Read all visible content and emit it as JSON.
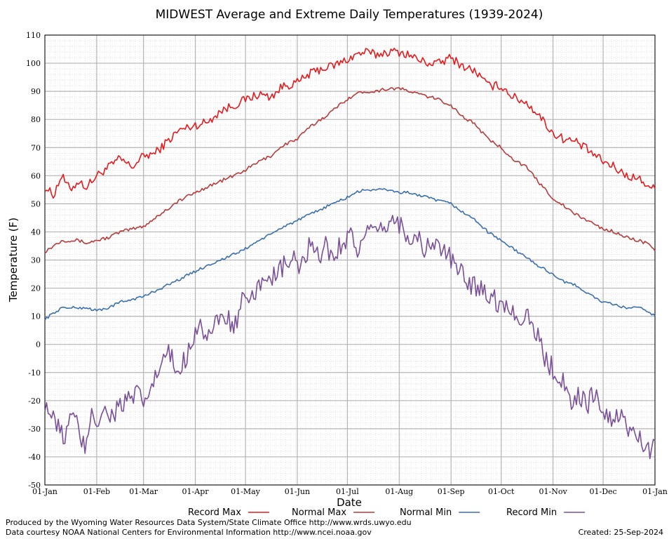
{
  "chart_data": {
    "type": "line",
    "title": "MIDWEST Average and Extreme Daily Temperatures (1939-2024)",
    "xlabel": "Date",
    "ylabel": "Temperature (F)",
    "ylim": [
      -50,
      110
    ],
    "yticks": [
      -50,
      -40,
      -30,
      -20,
      -10,
      0,
      10,
      20,
      30,
      40,
      50,
      60,
      70,
      80,
      90,
      100,
      110
    ],
    "x_tick_labels": [
      "01-Jan",
      "01-Feb",
      "01-Mar",
      "01-Apr",
      "01-May",
      "01-Jun",
      "01-Jul",
      "01-Aug",
      "01-Sep",
      "01-Oct",
      "01-Nov",
      "01-Dec",
      "01-Jan"
    ],
    "x_tick_days": [
      0,
      31,
      59,
      90,
      120,
      151,
      181,
      212,
      243,
      273,
      304,
      334,
      365
    ],
    "grid": true,
    "legend_position": "bottom",
    "series_keypoints_note_days": "x values are day-of-year offsets from 01-Jan",
    "series": [
      {
        "name": "Record Max",
        "color": "#e8191c",
        "x": [
          0,
          5,
          10,
          15,
          20,
          25,
          31,
          38,
          45,
          52,
          59,
          66,
          73,
          80,
          90,
          97,
          105,
          113,
          120,
          128,
          135,
          143,
          151,
          158,
          165,
          172,
          180,
          186,
          192,
          198,
          205,
          212,
          218,
          224,
          230,
          236,
          243,
          250,
          258,
          265,
          273,
          280,
          288,
          295,
          304,
          311,
          318,
          325,
          334,
          341,
          348,
          355,
          360,
          365
        ],
        "y": [
          56,
          53,
          60,
          55,
          58,
          56,
          60,
          63,
          66,
          63,
          67,
          68,
          72,
          76,
          78,
          79,
          83,
          85,
          87,
          89,
          88,
          92,
          93,
          96,
          98,
          99,
          101,
          103,
          104,
          103,
          104,
          104,
          103,
          101,
          100,
          100,
          102,
          99,
          97,
          92,
          92,
          88,
          86,
          82,
          75,
          73,
          72,
          69,
          65,
          63,
          60,
          59,
          57,
          55
        ]
      },
      {
        "name": "Normal Max",
        "color": "#b83a3a",
        "x": [
          0,
          5,
          10,
          15,
          20,
          25,
          31,
          38,
          45,
          52,
          59,
          66,
          73,
          80,
          90,
          97,
          105,
          113,
          120,
          128,
          135,
          143,
          151,
          158,
          165,
          172,
          180,
          186,
          192,
          198,
          205,
          212,
          218,
          224,
          230,
          236,
          243,
          250,
          258,
          265,
          273,
          280,
          288,
          295,
          304,
          311,
          318,
          325,
          334,
          341,
          348,
          355,
          360,
          365
        ],
        "y": [
          33,
          35,
          37,
          37,
          37,
          36,
          37,
          38,
          40,
          41,
          42,
          45,
          48,
          51,
          54,
          56,
          58,
          60,
          62,
          65,
          67,
          71,
          73,
          77,
          80,
          83,
          87,
          89,
          90,
          90,
          91,
          91,
          90,
          89,
          88,
          87,
          85,
          81,
          78,
          73,
          70,
          66,
          63,
          58,
          52,
          49,
          46,
          44,
          41,
          40,
          38,
          37,
          36,
          33
        ]
      },
      {
        "name": "Normal Min",
        "color": "#3a6fb0",
        "x": [
          0,
          5,
          10,
          15,
          20,
          25,
          31,
          38,
          45,
          52,
          59,
          66,
          73,
          80,
          90,
          97,
          105,
          113,
          120,
          128,
          135,
          143,
          151,
          158,
          165,
          172,
          180,
          186,
          192,
          198,
          205,
          212,
          218,
          224,
          230,
          236,
          243,
          250,
          258,
          265,
          273,
          280,
          288,
          295,
          304,
          311,
          318,
          325,
          334,
          341,
          348,
          355,
          360,
          365
        ],
        "y": [
          9,
          11,
          13,
          13,
          13,
          13,
          12,
          13,
          15,
          16,
          17,
          19,
          21,
          23,
          26,
          28,
          30,
          32,
          34,
          37,
          39,
          42,
          44,
          46,
          48,
          50,
          52,
          54,
          55,
          55,
          55,
          54,
          54,
          53,
          52,
          51,
          50,
          47,
          44,
          40,
          37,
          34,
          31,
          28,
          25,
          22,
          21,
          18,
          15,
          14,
          13,
          13,
          12,
          10
        ]
      },
      {
        "name": "Record Min",
        "color": "#7a4f9a",
        "x": [
          0,
          4,
          8,
          12,
          16,
          20,
          24,
          28,
          31,
          35,
          40,
          45,
          50,
          55,
          59,
          64,
          69,
          74,
          79,
          84,
          88,
          92,
          97,
          102,
          108,
          113,
          118,
          123,
          128,
          133,
          138,
          143,
          148,
          153,
          158,
          163,
          168,
          173,
          178,
          183,
          188,
          193,
          198,
          203,
          208,
          212,
          217,
          222,
          227,
          232,
          237,
          243,
          248,
          253,
          258,
          263,
          268,
          273,
          278,
          283,
          288,
          293,
          298,
          304,
          309,
          314,
          319,
          324,
          329,
          334,
          339,
          344,
          349,
          354,
          358,
          362,
          365
        ],
        "y": [
          -20,
          -26,
          -30,
          -33,
          -25,
          -30,
          -38,
          -22,
          -28,
          -24,
          -25,
          -22,
          -20,
          -18,
          -21,
          -15,
          -8,
          -3,
          -10,
          -5,
          2,
          8,
          3,
          6,
          11,
          5,
          15,
          14,
          20,
          26,
          23,
          28,
          30,
          27,
          34,
          31,
          35,
          31,
          37,
          39,
          33,
          40,
          38,
          42,
          44,
          43,
          39,
          38,
          34,
          36,
          34,
          30,
          26,
          22,
          21,
          20,
          16,
          15,
          13,
          9,
          12,
          5,
          -3,
          -9,
          -12,
          -20,
          -18,
          -22,
          -16,
          -26,
          -27,
          -24,
          -30,
          -33,
          -35,
          -38,
          -36
        ]
      }
    ]
  },
  "credits": {
    "produced_by": "Produced by the Wyoming Water Resources Data System/State Climate Office http://www.wrds.uwyo.edu",
    "data_courtesy": "Data courtesy NOAA National Centers for Environmental Information http://www.ncei.noaa.gov",
    "created": "Created: 25-Sep-2024"
  }
}
